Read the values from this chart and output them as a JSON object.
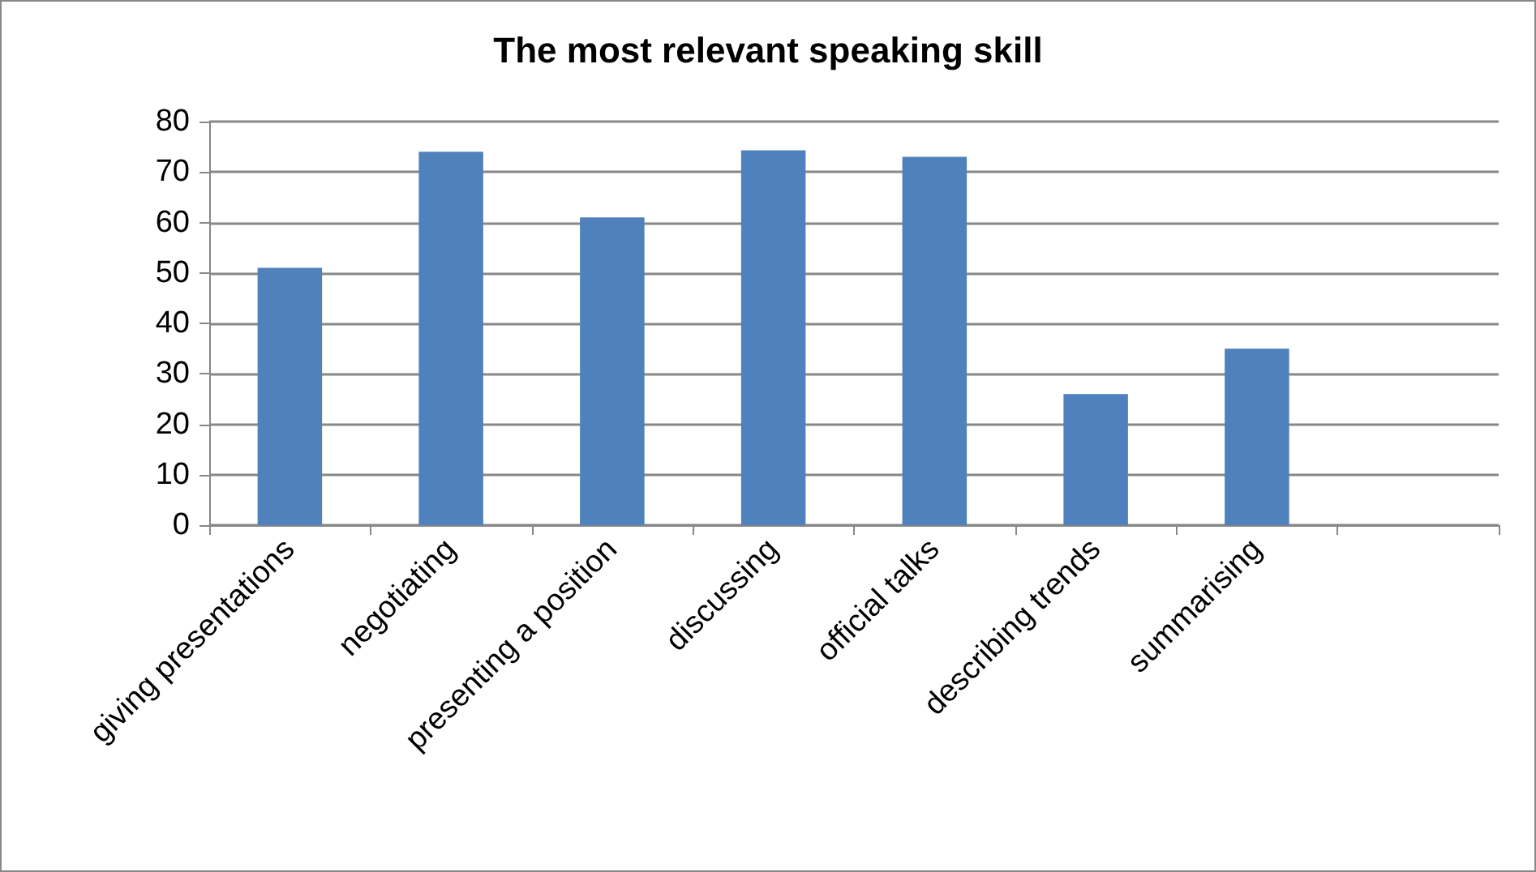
{
  "chart_data": {
    "type": "bar",
    "title": "The most relevant speaking skill",
    "categories": [
      "giving presentations",
      "negotiating",
      "presenting a position",
      "discussing",
      "official talks",
      "describing trends",
      "summarising",
      null
    ],
    "values": [
      51,
      74,
      61,
      74.3,
      73,
      26,
      35,
      null
    ],
    "color": "#4f81bd",
    "ylim": [
      0,
      80
    ],
    "yticks": [
      0,
      10,
      20,
      30,
      40,
      50,
      60,
      70,
      80
    ],
    "grid": "y"
  }
}
